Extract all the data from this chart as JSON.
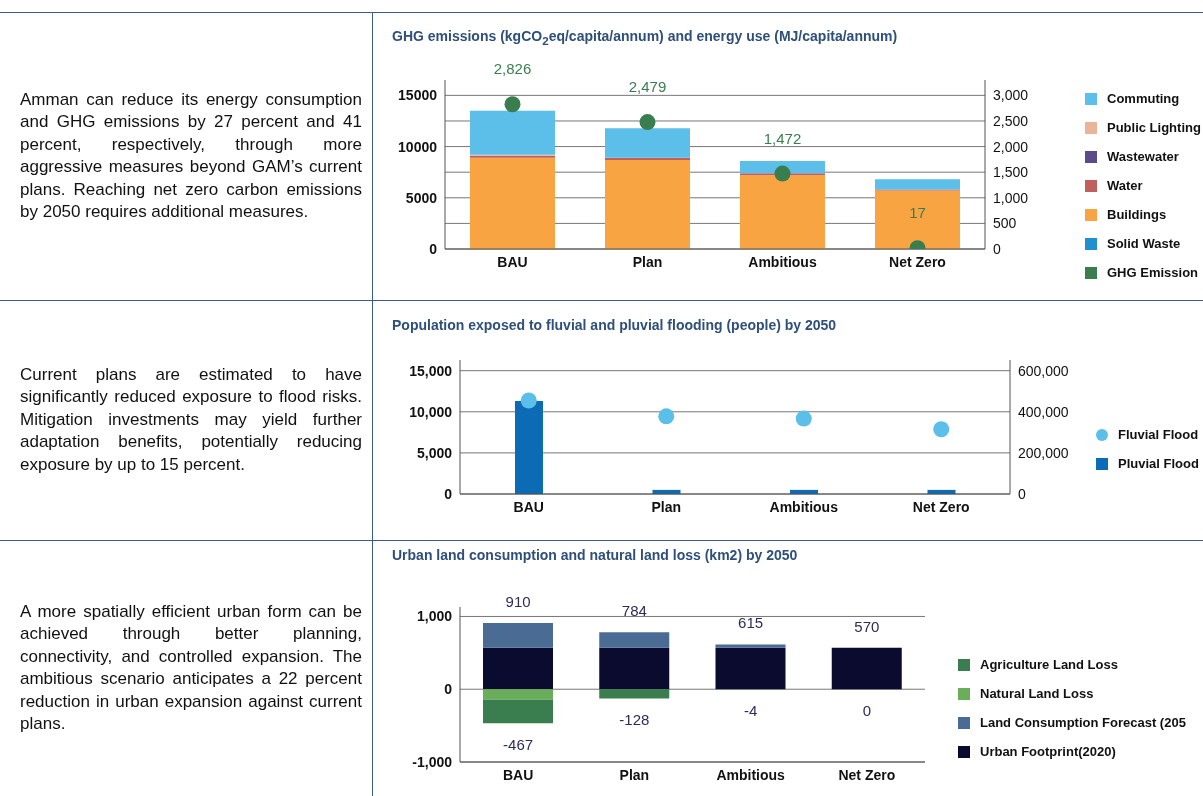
{
  "chart_data": [
    {
      "type": "bar",
      "title": "GHG emissions (kgCO$_{2}$eq/capita/annum) and energy use (MJ/capita/annum)",
      "annotations": [
        "Amman can reduce its energy consumption and GHG emissions by 27 percent and 41 percent, respectively, through more aggressive measures beyond GAM’s current plans. Reaching net zero carbon emissions by 2050 requires additional measures."
      ],
      "categories": [
        "BAU",
        "Plan",
        "Ambitious",
        "Net Zero"
      ],
      "stacked": true,
      "grid": "y",
      "legend": "right",
      "ylim": [
        0,
        16500
      ],
      "yticks": [
        0,
        5000,
        10000,
        15000
      ],
      "y2lim": [
        0,
        3300
      ],
      "y2ticks": [
        0,
        {
          "value": 500,
          "label": "500"
        },
        {
          "value": 1000,
          "label": "1,000"
        },
        {
          "value": 1500,
          "label": "1,500"
        },
        {
          "value": 2000,
          "label": "2,000"
        },
        {
          "value": 2500,
          "label": "2,500"
        },
        {
          "value": 3000,
          "label": "3,000"
        }
      ],
      "series": [
        {
          "name": "GHG Emission",
          "type": "scatter",
          "axis": "y2",
          "color": "#3a7d4f",
          "values": [
            2826,
            2479,
            1472,
            17
          ],
          "value_labels": [
            "2,826",
            "2,479",
            "1,472",
            "17"
          ]
        },
        {
          "name": "Solid Waste",
          "color": "#1f8fd0",
          "values": [
            0,
            0,
            0,
            0
          ]
        },
        {
          "name": "Buildings",
          "color": "#f8a443",
          "values": [
            8900,
            8700,
            7200,
            5700
          ]
        },
        {
          "name": "Water",
          "color": "#c0605e",
          "values": [
            200,
            200,
            200,
            100
          ]
        },
        {
          "name": "Wastewater",
          "color": "#5c4a8a",
          "values": [
            0,
            0,
            0,
            0
          ]
        },
        {
          "name": "Public Lighting",
          "color": "#e8b49a",
          "values": [
            100,
            0,
            0,
            0
          ]
        },
        {
          "name": "Commuting",
          "color": "#5bbfe9",
          "values": [
            4300,
            2900,
            1200,
            1000
          ]
        }
      ]
    },
    {
      "type": "bar",
      "title": "Population exposed to fluvial and pluvial flooding (people) by 2050",
      "annotations": [
        "Current plans are estimated to have significantly reduced exposure to flood risks. Mitigation investments may yield further adaptation benefits, potentially reducing exposure by up to 15 percent."
      ],
      "categories": [
        "BAU",
        "Plan",
        "Ambitious",
        "Net Zero"
      ],
      "grid": "y",
      "legend": "right",
      "ylim": [
        0,
        16300
      ],
      "yticks": [
        0,
        {
          "value": 5000,
          "label": "5,000"
        },
        {
          "value": 10000,
          "label": "10,000"
        },
        {
          "value": 15000,
          "label": "15,000"
        }
      ],
      "y2lim": [
        0,
        652000
      ],
      "y2ticks": [
        0,
        {
          "value": 200000,
          "label": "200,000"
        },
        {
          "value": 400000,
          "label": "400,000"
        },
        {
          "value": 600000,
          "label": "600,000"
        }
      ],
      "series": [
        {
          "name": "Pluvial Flood",
          "color": "#0c6bb5",
          "values": [
            11300,
            500,
            500,
            500
          ]
        },
        {
          "name": "Fluvial Flood",
          "type": "scatter",
          "axis": "y2",
          "color": "#5bbfe9",
          "values": [
            455000,
            378000,
            367000,
            315000
          ]
        }
      ]
    },
    {
      "type": "bar",
      "title": "Urban land consumption and natural land loss (km2) by 2050",
      "annotations": [
        "A more spatially efficient urban form can be achieved through better planning, connectivity, and controlled expansion. The ambitious scenario anticipates a 22 percent reduction in urban expansion against current plans.",
        {
          "text": "910",
          "x": "BAU",
          "y": 910
        },
        {
          "text": "784",
          "x": "Plan",
          "y": 784
        },
        {
          "text": "615",
          "x": "Ambitious",
          "y": 615
        },
        {
          "text": "570",
          "x": "Net Zero",
          "y": 570
        },
        {
          "text": "-467",
          "x": "BAU",
          "y": -467
        },
        {
          "text": "-128",
          "x": "Plan",
          "y": -128
        },
        {
          "text": "-4",
          "x": "Ambitious",
          "y": -4
        },
        {
          "text": "0",
          "x": "Net Zero",
          "y": 0
        }
      ],
      "categories": [
        "BAU",
        "Plan",
        "Ambitious",
        "Net Zero"
      ],
      "stacked": true,
      "grid": "y",
      "legend": "right",
      "ylim": [
        -1000,
        1130
      ],
      "yticks": [
        {
          "value": -1000,
          "label": "-1,000"
        },
        0,
        {
          "value": 1000,
          "label": "1,000"
        }
      ],
      "series": [
        {
          "name": "Urban Footprint(2020)",
          "color": "#0b0b30",
          "values": [
            570,
            570,
            570,
            570
          ]
        },
        {
          "name": "Land Consumption Forecast (205",
          "color": "#4a6b94",
          "values": [
            340,
            214,
            45,
            0
          ]
        },
        {
          "name": "Natural Land Loss",
          "color": "#6aad5a",
          "values": [
            -145,
            0,
            -4,
            0
          ]
        },
        {
          "name": "Agriculture Land Loss",
          "color": "#3a7d4f",
          "values": [
            -322,
            -128,
            0,
            0
          ]
        }
      ]
    }
  ]
}
